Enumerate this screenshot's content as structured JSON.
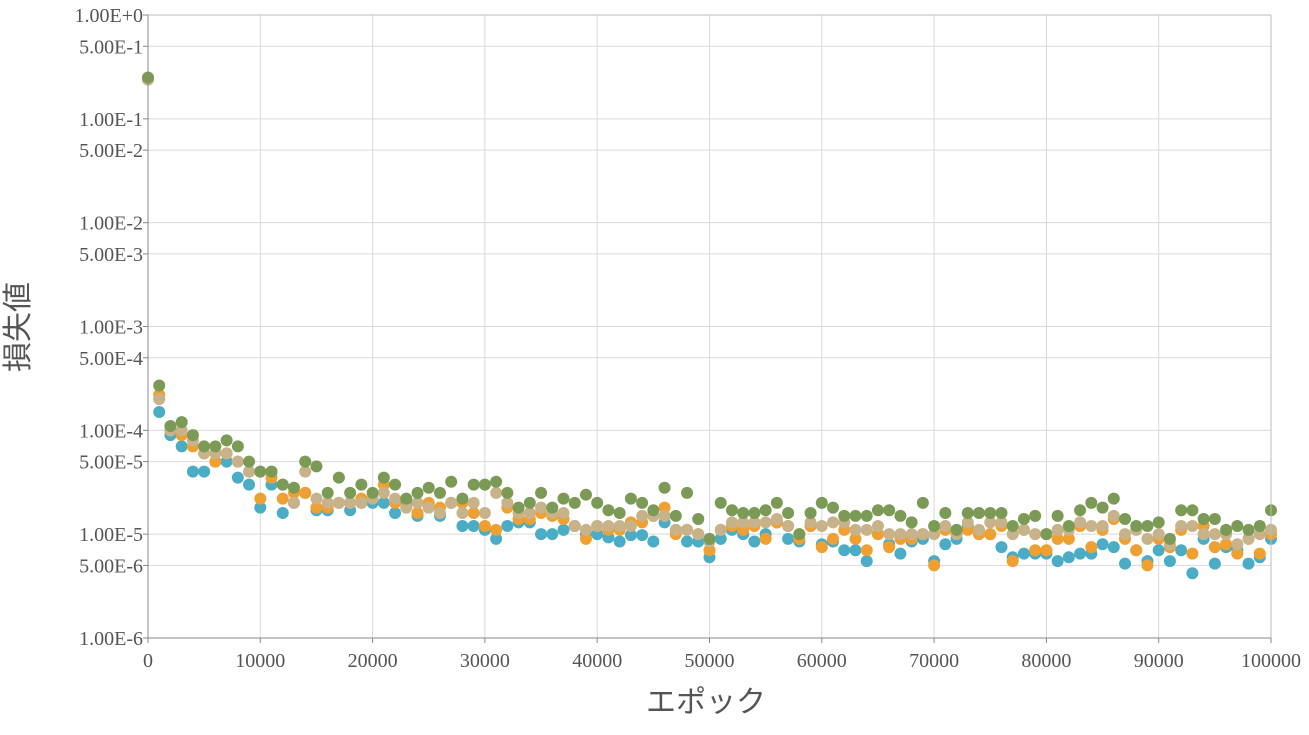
{
  "chart_data": {
    "type": "scatter",
    "xlabel": "エポック",
    "ylabel": "損失値",
    "xlim": [
      0,
      100000
    ],
    "ylim": [
      1e-06,
      1
    ],
    "y_scale": "log",
    "grid": true,
    "legend": "none",
    "x_ticks": [
      "0",
      "10000",
      "20000",
      "30000",
      "40000",
      "50000",
      "60000",
      "70000",
      "80000",
      "90000",
      "100000"
    ],
    "y_ticks": [
      {
        "value": 1,
        "label": "1.00E+0"
      },
      {
        "value": 0.5,
        "label": "5.00E-1"
      },
      {
        "value": 0.1,
        "label": "1.00E-1"
      },
      {
        "value": 0.05,
        "label": "5.00E-2"
      },
      {
        "value": 0.01,
        "label": "1.00E-2"
      },
      {
        "value": 0.005,
        "label": "5.00E-3"
      },
      {
        "value": 0.001,
        "label": "1.00E-3"
      },
      {
        "value": 0.0005,
        "label": "5.00E-4"
      },
      {
        "value": 0.0001,
        "label": "1.00E-4"
      },
      {
        "value": 5e-05,
        "label": "5.00E-5"
      },
      {
        "value": 1e-05,
        "label": "1.00E-5"
      },
      {
        "value": 5e-06,
        "label": "5.00E-6"
      },
      {
        "value": 1e-06,
        "label": "1.00E-6"
      }
    ],
    "x": [
      0,
      1000,
      2000,
      3000,
      4000,
      5000,
      6000,
      7000,
      8000,
      9000,
      10000,
      11000,
      12000,
      13000,
      14000,
      15000,
      16000,
      17000,
      18000,
      19000,
      20000,
      21000,
      22000,
      23000,
      24000,
      25000,
      26000,
      27000,
      28000,
      29000,
      30000,
      31000,
      32000,
      33000,
      34000,
      35000,
      36000,
      37000,
      38000,
      39000,
      40000,
      41000,
      42000,
      43000,
      44000,
      45000,
      46000,
      47000,
      48000,
      49000,
      50000,
      51000,
      52000,
      53000,
      54000,
      55000,
      56000,
      57000,
      58000,
      59000,
      60000,
      61000,
      62000,
      63000,
      64000,
      65000,
      66000,
      67000,
      68000,
      69000,
      70000,
      71000,
      72000,
      73000,
      74000,
      75000,
      76000,
      77000,
      78000,
      79000,
      80000,
      81000,
      82000,
      83000,
      84000,
      85000,
      86000,
      87000,
      88000,
      89000,
      90000,
      91000,
      92000,
      93000,
      94000,
      95000,
      96000,
      97000,
      98000,
      99000,
      100000
    ],
    "series": [
      {
        "color": "#4bacc6",
        "values": [
          0.24,
          0.00015,
          9e-05,
          7e-05,
          4e-05,
          4e-05,
          5e-05,
          5e-05,
          3.5e-05,
          3e-05,
          1.8e-05,
          3e-05,
          1.6e-05,
          2e-05,
          2.5e-05,
          1.7e-05,
          1.7e-05,
          2e-05,
          1.7e-05,
          2e-05,
          2e-05,
          2e-05,
          1.6e-05,
          2e-05,
          1.5e-05,
          1.8e-05,
          1.5e-05,
          2e-05,
          1.2e-05,
          1.2e-05,
          1.1e-05,
          9e-06,
          1.2e-05,
          1.3e-05,
          1.3e-05,
          1e-05,
          1e-05,
          1.1e-05,
          1.2e-05,
          1e-05,
          1e-05,
          9.3e-06,
          8.5e-06,
          9.8e-06,
          9.8e-06,
          8.5e-06,
          1.3e-05,
          1.1e-05,
          8.5e-06,
          8.5e-06,
          6e-06,
          9e-06,
          1.1e-05,
          1e-05,
          8.5e-06,
          1e-05,
          1.3e-05,
          9e-06,
          8.5e-06,
          1.2e-05,
          8e-06,
          8.5e-06,
          7e-06,
          7e-06,
          5.5e-06,
          1e-05,
          8e-06,
          6.5e-06,
          8.5e-06,
          9e-06,
          5.5e-06,
          8e-06,
          9e-06,
          1.2e-05,
          1e-05,
          1e-05,
          7.5e-06,
          6e-06,
          6.5e-06,
          6.5e-06,
          6.5e-06,
          5.5e-06,
          6e-06,
          6.5e-06,
          6.5e-06,
          8e-06,
          7.5e-06,
          5.2e-06,
          7e-06,
          5.5e-06,
          7e-06,
          5.5e-06,
          7e-06,
          4.2e-06,
          9e-06,
          5.2e-06,
          7.5e-06,
          7e-06,
          5.2e-06,
          6e-06,
          9e-06
        ]
      },
      {
        "color": "#f0a030",
        "values": [
          0.24,
          0.00022,
          0.0001,
          9e-05,
          7e-05,
          6e-05,
          5e-05,
          6e-05,
          5e-05,
          4e-05,
          2.2e-05,
          3.5e-05,
          2.2e-05,
          2.5e-05,
          2.5e-05,
          1.8e-05,
          1.8e-05,
          2e-05,
          2e-05,
          2.2e-05,
          2.2e-05,
          3e-05,
          2e-05,
          1.8e-05,
          1.6e-05,
          2e-05,
          1.8e-05,
          2e-05,
          2e-05,
          1.6e-05,
          1.2e-05,
          1.1e-05,
          1.8e-05,
          1.4e-05,
          1.4e-05,
          1.6e-05,
          1.5e-05,
          1.4e-05,
          1.2e-05,
          9e-06,
          1.2e-05,
          1.1e-05,
          1.1e-05,
          1.3e-05,
          1.3e-05,
          1.5e-05,
          1.8e-05,
          1e-05,
          1.1e-05,
          1e-05,
          7e-06,
          1.1e-05,
          1.2e-05,
          1.1e-05,
          1.2e-05,
          9e-06,
          1.3e-05,
          1.2e-05,
          9e-06,
          1.2e-05,
          7.5e-06,
          9e-06,
          1.1e-05,
          9e-06,
          7e-06,
          1e-05,
          7.5e-06,
          9e-06,
          9e-06,
          1e-05,
          5e-06,
          1.1e-05,
          1e-05,
          1.1e-05,
          1e-05,
          1e-05,
          1.2e-05,
          5.5e-06,
          1.1e-05,
          7e-06,
          7e-06,
          9e-06,
          9e-06,
          1.2e-05,
          7.5e-06,
          1.1e-05,
          1.4e-05,
          9e-06,
          7e-06,
          5e-06,
          9e-06,
          7.5e-06,
          1.1e-05,
          6.5e-06,
          1.2e-05,
          7.5e-06,
          8e-06,
          6.5e-06,
          9e-06,
          6.5e-06,
          1e-05
        ]
      },
      {
        "color": "#c8b28a",
        "values": [
          0.24,
          0.0002,
          0.0001,
          0.0001,
          8e-05,
          6e-05,
          6e-05,
          6e-05,
          5e-05,
          4e-05,
          4e-05,
          4e-05,
          3e-05,
          2e-05,
          4e-05,
          2.2e-05,
          2e-05,
          2e-05,
          2e-05,
          2e-05,
          2.2e-05,
          2.5e-05,
          2.2e-05,
          1.8e-05,
          2e-05,
          1.8e-05,
          1.6e-05,
          2e-05,
          1.6e-05,
          2e-05,
          1.6e-05,
          2.5e-05,
          2e-05,
          1.6e-05,
          1.6e-05,
          1.8e-05,
          1.6e-05,
          1.6e-05,
          1.2e-05,
          1.1e-05,
          1.2e-05,
          1.2e-05,
          1.2e-05,
          1.2e-05,
          1.5e-05,
          1.5e-05,
          1.5e-05,
          1.1e-05,
          1.1e-05,
          1e-05,
          8.5e-06,
          1.1e-05,
          1.3e-05,
          1.3e-05,
          1.3e-05,
          1.3e-05,
          1.4e-05,
          1.2e-05,
          1e-05,
          1.3e-05,
          1.2e-05,
          1.3e-05,
          1.3e-05,
          1.1e-05,
          1.1e-05,
          1.2e-05,
          1e-05,
          1e-05,
          1e-05,
          1e-05,
          1e-05,
          1.2e-05,
          1e-05,
          1.3e-05,
          1.1e-05,
          1.3e-05,
          1.3e-05,
          1e-05,
          1.1e-05,
          1e-05,
          1e-05,
          1.1e-05,
          1.1e-05,
          1.3e-05,
          1.2e-05,
          1.2e-05,
          1.5e-05,
          1e-05,
          1.1e-05,
          9e-06,
          1e-05,
          8e-06,
          1.2e-05,
          1.2e-05,
          1e-05,
          1e-05,
          1e-05,
          8e-06,
          9e-06,
          1e-05,
          1.1e-05
        ]
      },
      {
        "color": "#7a9a55",
        "values": [
          0.25,
          0.00027,
          0.00011,
          0.00012,
          9e-05,
          7e-05,
          7e-05,
          8e-05,
          7e-05,
          5e-05,
          4e-05,
          4e-05,
          3e-05,
          2.8e-05,
          5e-05,
          4.5e-05,
          2.5e-05,
          3.5e-05,
          2.5e-05,
          3e-05,
          2.5e-05,
          3.5e-05,
          3e-05,
          2.2e-05,
          2.5e-05,
          2.8e-05,
          2.5e-05,
          3.2e-05,
          2.2e-05,
          3e-05,
          3e-05,
          3.2e-05,
          2.5e-05,
          1.8e-05,
          2e-05,
          2.5e-05,
          1.8e-05,
          2.2e-05,
          2e-05,
          2.4e-05,
          2e-05,
          1.7e-05,
          1.6e-05,
          2.2e-05,
          2e-05,
          1.7e-05,
          2.8e-05,
          1.5e-05,
          2.5e-05,
          1.4e-05,
          9e-06,
          2e-05,
          1.7e-05,
          1.6e-05,
          1.6e-05,
          1.7e-05,
          2e-05,
          1.6e-05,
          1e-05,
          1.6e-05,
          2e-05,
          1.8e-05,
          1.5e-05,
          1.5e-05,
          1.5e-05,
          1.7e-05,
          1.7e-05,
          1.5e-05,
          1.3e-05,
          2e-05,
          1.2e-05,
          1.6e-05,
          1.1e-05,
          1.6e-05,
          1.6e-05,
          1.6e-05,
          1.6e-05,
          1.2e-05,
          1.4e-05,
          1.5e-05,
          1e-05,
          1.5e-05,
          1.2e-05,
          1.7e-05,
          2e-05,
          1.8e-05,
          2.2e-05,
          1.4e-05,
          1.2e-05,
          1.2e-05,
          1.3e-05,
          9e-06,
          1.7e-05,
          1.7e-05,
          1.4e-05,
          1.4e-05,
          1.1e-05,
          1.2e-05,
          1.1e-05,
          1.2e-05,
          1.7e-05
        ]
      }
    ]
  }
}
